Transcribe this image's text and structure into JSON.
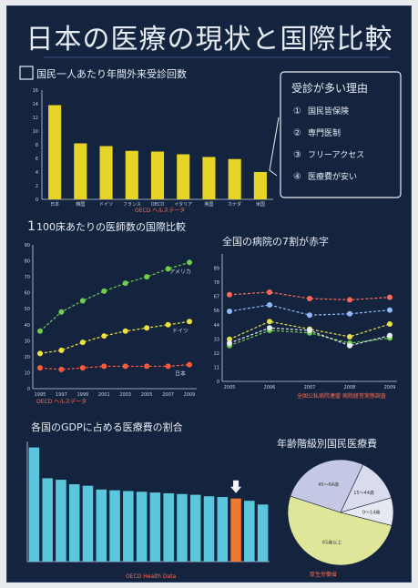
{
  "poster": {
    "title": "日本の医療の現状と国際比較"
  },
  "chart_data": [
    {
      "type": "bar",
      "title": "国民一人あたり年間外来受診回数",
      "categories": [
        "日本",
        "韓国",
        "ドイツ",
        "フランス",
        "OECD",
        "イタリア",
        "英国",
        "カナダ",
        "米国"
      ],
      "values": [
        13.8,
        8.2,
        7.8,
        7.1,
        7.0,
        6.6,
        6.2,
        5.9,
        4.0
      ],
      "ylim": [
        0,
        16
      ],
      "yticks": [
        "0",
        "2",
        "4",
        "6",
        "8",
        "10",
        "12",
        "14",
        "16"
      ],
      "color": "#e6d426",
      "source": "OECD ヘルスデータ"
    },
    {
      "type": "line",
      "title": "100床あたりの医師数の国際比較",
      "x": [
        "1995",
        "1997",
        "1999",
        "2001",
        "2003",
        "2005",
        "2007",
        "2009"
      ],
      "series": [
        {
          "name": "アメリカ",
          "values": [
            36,
            48,
            55,
            61,
            66,
            70,
            75,
            79
          ],
          "color": "#6fcf4a"
        },
        {
          "name": "ドイツ",
          "values": [
            22,
            24,
            29,
            33,
            36,
            38,
            40,
            42
          ],
          "color": "#f0e03c"
        },
        {
          "name": "日本",
          "values": [
            13,
            12,
            13,
            14,
            14,
            14,
            14,
            15
          ],
          "color": "#ff5a3c"
        }
      ],
      "ylim": [
        0,
        90
      ],
      "source": "OECD ヘルスデータ"
    },
    {
      "type": "line",
      "title": "全国の病院の7割が赤字",
      "x": [
        "2005",
        "2006",
        "2007",
        "2008",
        "2009"
      ],
      "series": [
        {
          "name": "",
          "values": [
            68,
            70,
            65,
            64,
            66
          ],
          "color": "#ff6b5a"
        },
        {
          "name": "",
          "values": [
            55,
            60,
            52,
            53,
            56
          ],
          "color": "#8fb9ff"
        },
        {
          "name": "",
          "values": [
            33,
            47,
            41,
            35,
            45
          ],
          "color": "#e6e04a"
        },
        {
          "name": "",
          "values": [
            28,
            40,
            38,
            30,
            34
          ],
          "color": "#6fcf4a"
        },
        {
          "name": "",
          "values": [
            30,
            42,
            40,
            28,
            36
          ],
          "color": "#e8ecf4"
        }
      ],
      "ylim": [
        0,
        100
      ],
      "source": "全国公私病院連盟 病院経営実態調査"
    },
    {
      "type": "bar",
      "title": "各国のGDPに占める医療費の割合",
      "values": [
        15.2,
        11.1,
        10.9,
        10.3,
        10.1,
        9.6,
        9.5,
        9.4,
        9.3,
        9.2,
        9.1,
        9.0,
        8.9,
        8.7,
        8.6,
        8.4,
        8.1,
        7.6
      ],
      "highlight_index": 15,
      "color": "#5bc7dc",
      "highlight_color": "#f07830",
      "ylim": [
        0,
        16
      ],
      "source": "OECD Health Data"
    },
    {
      "type": "pie",
      "title": "年齢階級別国民医療費",
      "slices": [
        {
          "label": "65歳以上",
          "value": 51.0,
          "color": "#dfe69a"
        },
        {
          "label": "45～64歳",
          "value": 27.0,
          "color": "#c5c8e4"
        },
        {
          "label": "15～44歳",
          "value": 13.5,
          "color": "#d8dced"
        },
        {
          "label": "0～14歳",
          "value": 8.5,
          "color": "#e6e8f2"
        }
      ],
      "source": "厚生労働省"
    }
  ],
  "reasons": {
    "heading": "受診が多い理由",
    "items": [
      {
        "num": "①",
        "text": "国民皆保険"
      },
      {
        "num": "②",
        "text": "専門医制"
      },
      {
        "num": "③",
        "text": "フリーアクセス"
      },
      {
        "num": "④",
        "text": "医療費が安い"
      }
    ]
  }
}
